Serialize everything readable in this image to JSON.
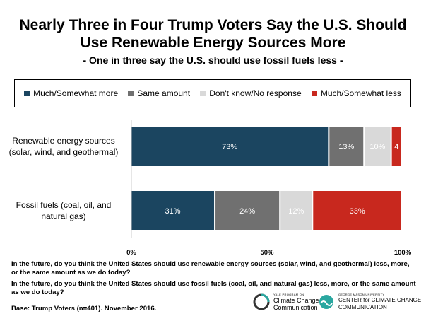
{
  "title_line1": "Nearly Three in Four Trump Voters Say the U.S. Should",
  "title_line2": "Use Renewable Energy Sources More",
  "subtitle": "- One in three say the U.S. should use fossil fuels less -",
  "chart_data": {
    "type": "bar",
    "orientation": "horizontal-stacked",
    "categories": [
      "Renewable energy sources (solar, wind, and geothermal)",
      "Fossil fuels (coal, oil, and natural gas)"
    ],
    "category_lines": [
      [
        "Renewable energy sources",
        "(solar, wind, and geothermal)"
      ],
      [
        "Fossil fuels (coal, oil, and",
        "natural gas)"
      ]
    ],
    "series": [
      {
        "name": "Much/Somewhat more",
        "color": "#1b4560",
        "values": [
          73,
          31
        ],
        "labels": [
          "73%",
          "31%"
        ]
      },
      {
        "name": "Same amount",
        "color": "#707070",
        "values": [
          13,
          24
        ],
        "labels": [
          "13%",
          "24%"
        ]
      },
      {
        "name": "Don't know/No response",
        "color": "#d9d9d9",
        "values": [
          10,
          12
        ],
        "labels": [
          "10%",
          "12%"
        ]
      },
      {
        "name": "Much/Somewhat less",
        "color": "#c8281e",
        "values": [
          4,
          33
        ],
        "labels": [
          "4",
          "33%"
        ]
      }
    ],
    "xlim": [
      0,
      100
    ],
    "xticks": [
      "0%",
      "50%",
      "100%"
    ],
    "legend_position": "top",
    "grid": false
  },
  "question1": "In the future, do you think the United States should use renewable energy sources (solar, wind, and geothermal) less, more, or the same amount as we do today?",
  "question2": "In the future, do you think the United States should use fossil fuels (coal, oil, and natural gas) less, more, or the same amount as we do today?",
  "base": "Base: Trump Voters (n=401). November 2016.",
  "logo_yale": {
    "small": "YALE PROGRAM ON",
    "line1": "Climate Change",
    "line2": "Communication"
  },
  "logo_gmu": {
    "small": "GEORGE MASON UNIVERSITY",
    "line1": "CENTER for CLIMATE CHANGE",
    "line2": "COMMUNICATION"
  }
}
